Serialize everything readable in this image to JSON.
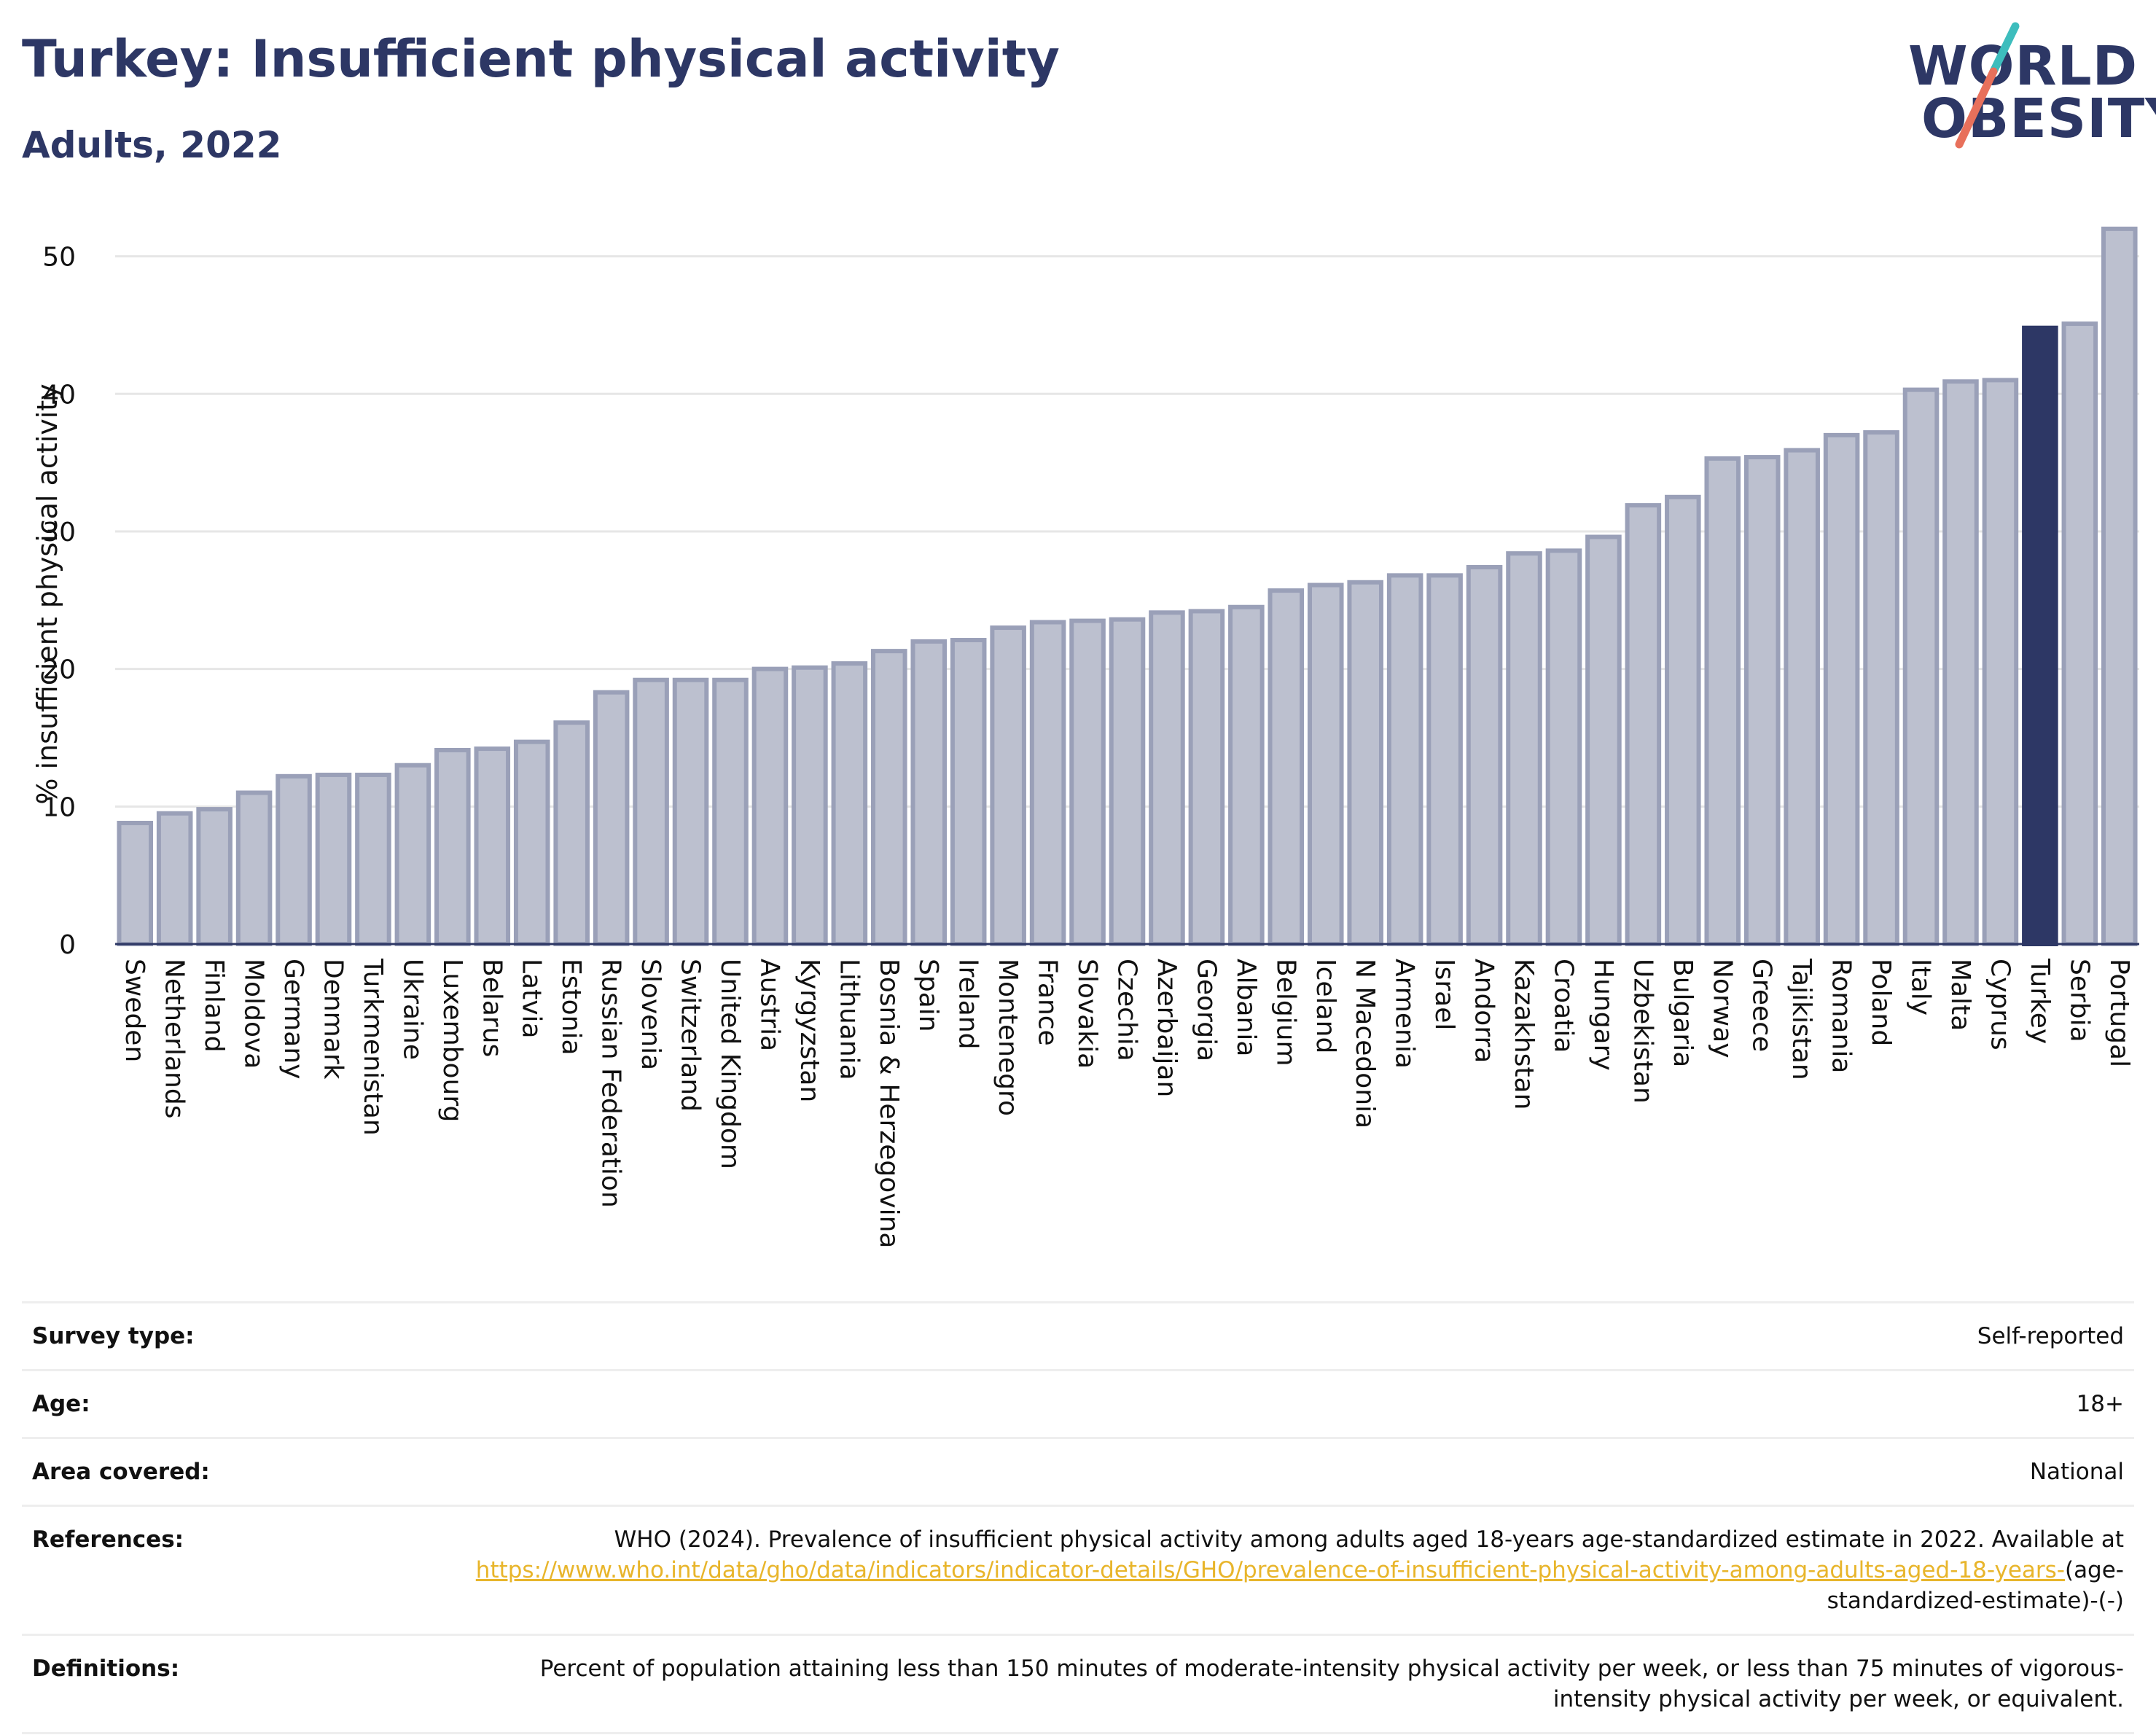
{
  "title": "Turkey: Insufficient physical activity",
  "subtitle": "Adults, 2022",
  "logo": {
    "line1": "WORLD",
    "line2": "OBESITY",
    "accent_colors": [
      "#e8705b",
      "#3dbdbd"
    ]
  },
  "colors": {
    "highlight": "#2d3765",
    "bar": "#bcc0cf",
    "bar_edge": "#9aa0b8",
    "link": "#e8b52b"
  },
  "chart_data": {
    "type": "bar",
    "ylabel": "% insufficient physical activity",
    "xlabel": "",
    "ylim": [
      0,
      53
    ],
    "yticks": [
      0,
      10,
      20,
      30,
      40,
      50
    ],
    "grid": true,
    "highlight": "Turkey",
    "categories": [
      "Sweden",
      "Netherlands",
      "Finland",
      "Moldova",
      "Germany",
      "Denmark",
      "Turkmenistan",
      "Ukraine",
      "Luxembourg",
      "Belarus",
      "Latvia",
      "Estonia",
      "Russian Federation",
      "Slovenia",
      "Switzerland",
      "United Kingdom",
      "Austria",
      "Kyrgyzstan",
      "Lithuania",
      "Bosnia & Herzegovina",
      "Spain",
      "Ireland",
      "Montenegro",
      "France",
      "Slovakia",
      "Czechia",
      "Azerbaijan",
      "Georgia",
      "Albania",
      "Belgium",
      "Iceland",
      "N Macedonia",
      "Armenia",
      "Israel",
      "Andorra",
      "Kazakhstan",
      "Croatia",
      "Hungary",
      "Uzbekistan",
      "Bulgaria",
      "Norway",
      "Greece",
      "Tajikistan",
      "Romania",
      "Poland",
      "Italy",
      "Malta",
      "Cyprus",
      "Turkey",
      "Serbia",
      "Portugal"
    ],
    "values": [
      8.8,
      9.5,
      9.8,
      11.0,
      12.2,
      12.3,
      12.3,
      13.0,
      14.1,
      14.2,
      14.7,
      16.1,
      18.3,
      19.2,
      19.2,
      19.2,
      20.0,
      20.1,
      20.4,
      21.3,
      22.0,
      22.1,
      23.0,
      23.4,
      23.5,
      23.6,
      24.1,
      24.2,
      24.5,
      25.7,
      26.1,
      26.3,
      26.8,
      26.8,
      27.4,
      28.4,
      28.6,
      29.6,
      31.9,
      32.5,
      35.3,
      35.4,
      35.9,
      37.0,
      37.2,
      40.3,
      40.9,
      41.0,
      44.8,
      45.1,
      52.0
    ]
  },
  "meta": {
    "survey_type": {
      "label": "Survey type:",
      "value": "Self-reported"
    },
    "age": {
      "label": "Age:",
      "value": "18+"
    },
    "area": {
      "label": "Area covered:",
      "value": "National"
    },
    "references": {
      "label": "References:",
      "text": "WHO (2024). Prevalence of insufficient physical activity among adults aged 18-years age-standardized estimate in 2022. Available at ",
      "link": "https://www.who.int/data/gho/data/indicators/indicator-details/GHO/prevalence-of-insufficient-physical-activity-among-adults-aged-18-years-",
      "suffix": "(age-standardized-estimate)-(-)"
    },
    "definitions": {
      "label": "Definitions:",
      "value": "Percent of population attaining less than 150 minutes of moderate-intensity physical activity per week, or less than 75 minutes of vigorous-intensity physical activity per week, or equivalent."
    }
  }
}
